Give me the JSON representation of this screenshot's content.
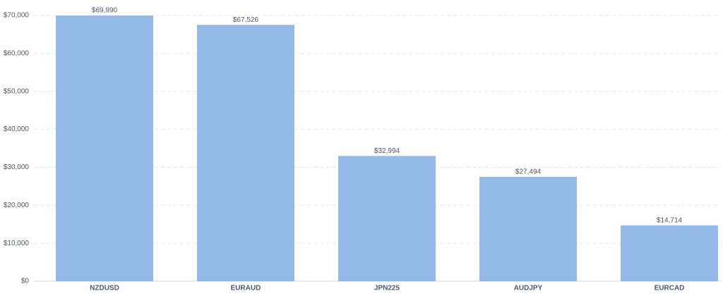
{
  "chart_data": {
    "type": "bar",
    "categories": [
      "NZDUSD",
      "EURAUD",
      "JPN225",
      "AUDJPY",
      "EURCAD"
    ],
    "values": [
      69990,
      67526,
      32994,
      27494,
      14714
    ],
    "value_labels": [
      "$69,990",
      "$67,526",
      "$32,994",
      "$27,494",
      "$14,714"
    ],
    "color": "#93bae6",
    "ylim": [
      0,
      70000
    ],
    "yticks": [
      {
        "value": 0,
        "label": "$0"
      },
      {
        "value": 10000,
        "label": "$10,000"
      },
      {
        "value": 20000,
        "label": "$20,000"
      },
      {
        "value": 30000,
        "label": "$30,000"
      },
      {
        "value": 40000,
        "label": "$40,000"
      },
      {
        "value": 50000,
        "label": "$50,000"
      },
      {
        "value": 60000,
        "label": "$60,000"
      },
      {
        "value": 70000,
        "label": "$70,000"
      }
    ],
    "grid": true
  }
}
